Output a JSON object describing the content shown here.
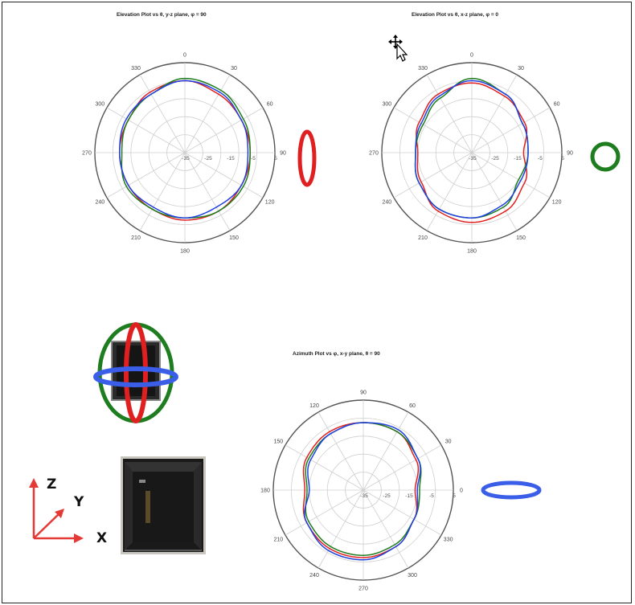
{
  "colors": {
    "red": "#e02020",
    "green": "#1e7d1e",
    "blue": "#2040e0",
    "grid": "#cfcfcf",
    "axis_arrow": "#e53935",
    "frame": "#222222"
  },
  "charts": {
    "yz": {
      "title": "Elevation Plot vs θ, y-z plane, φ = 90"
    },
    "xz": {
      "title": "Elevation Plot vs θ, x-z plane, φ = 0"
    },
    "xy": {
      "title": "Azimuth Plot vs φ, x-y plane, θ = 90"
    }
  },
  "coords": {
    "z_label": "Z",
    "y_label": "Y",
    "x_label": "X"
  },
  "icons": {
    "cursor": "move-cursor-icon"
  },
  "chart_data": [
    {
      "type": "polar-line",
      "title": "Elevation Plot vs θ, y-z plane, φ = 90",
      "angle_ticks": [
        "0",
        "30",
        "60",
        "90",
        "120",
        "150",
        "180",
        "210",
        "240",
        "270",
        "300",
        "330"
      ],
      "angle_zero": "top",
      "angle_direction": "clockwise",
      "r_ticks": [
        "-35",
        "-25",
        "-15",
        "-5",
        "5"
      ],
      "rlim": [
        -35,
        5
      ],
      "series": [
        {
          "color": "red",
          "angles": [
            0,
            30,
            60,
            90,
            120,
            150,
            180,
            210,
            240,
            270,
            300,
            330,
            360
          ],
          "values": [
            -3,
            -5,
            -6,
            -6,
            -6,
            -5,
            -5,
            -6,
            -6,
            -6,
            -6,
            -4,
            -3
          ]
        },
        {
          "color": "green",
          "angles": [
            0,
            30,
            60,
            90,
            120,
            150,
            180,
            210,
            240,
            270,
            300,
            330,
            360
          ],
          "values": [
            -2,
            -3,
            -5,
            -6,
            -5,
            -5,
            -6,
            -6,
            -5,
            -7,
            -6,
            -5,
            -2
          ]
        },
        {
          "color": "blue",
          "angles": [
            0,
            30,
            60,
            90,
            120,
            150,
            180,
            210,
            240,
            270,
            300,
            330,
            360
          ],
          "values": [
            -3,
            -4,
            -6,
            -7,
            -6,
            -7,
            -6,
            -7,
            -6,
            -6,
            -5,
            -5,
            -3
          ]
        }
      ]
    },
    {
      "type": "polar-line",
      "title": "Elevation Plot vs θ, x-z plane, φ = 0",
      "angle_ticks": [
        "0",
        "30",
        "60",
        "90",
        "120",
        "150",
        "180",
        "210",
        "240",
        "270",
        "300",
        "330"
      ],
      "angle_zero": "top",
      "angle_direction": "clockwise",
      "r_ticks": [
        "-35",
        "-25",
        "-15",
        "-5",
        "5"
      ],
      "rlim": [
        -35,
        5
      ],
      "series": [
        {
          "color": "red",
          "angles": [
            0,
            30,
            60,
            90,
            120,
            150,
            180,
            210,
            240,
            270,
            300,
            330,
            360
          ],
          "values": [
            -4,
            -6,
            -8,
            -12,
            -8,
            -5,
            -4,
            -5,
            -9,
            -11,
            -8,
            -5,
            -4
          ]
        },
        {
          "color": "green",
          "angles": [
            0,
            30,
            60,
            90,
            120,
            150,
            180,
            210,
            240,
            270,
            300,
            330,
            360
          ],
          "values": [
            -2,
            -5,
            -9,
            -10,
            -11,
            -7,
            -6,
            -6,
            -8,
            -10,
            -10,
            -7,
            -2
          ]
        },
        {
          "color": "blue",
          "angles": [
            0,
            30,
            60,
            90,
            120,
            150,
            180,
            210,
            240,
            270,
            300,
            330,
            360
          ],
          "values": [
            -3,
            -5,
            -9,
            -10,
            -10,
            -8,
            -6,
            -6,
            -8,
            -10,
            -9,
            -6,
            -3
          ]
        }
      ]
    },
    {
      "type": "polar-line",
      "title": "Azimuth Plot vs φ, x-y plane, θ = 90",
      "angle_ticks": [
        "0",
        "30",
        "60",
        "90",
        "120",
        "150",
        "180",
        "210",
        "240",
        "270",
        "300",
        "330"
      ],
      "angle_zero": "right",
      "angle_direction": "counterclockwise",
      "r_ticks": [
        "-35",
        "-25",
        "-15",
        "-5",
        "5"
      ],
      "rlim": [
        -35,
        5
      ],
      "series": [
        {
          "color": "red",
          "angles": [
            0,
            30,
            60,
            90,
            120,
            150,
            180,
            210,
            240,
            270,
            300,
            330,
            360
          ],
          "values": [
            -12,
            -8,
            -5,
            -5,
            -5,
            -6,
            -9,
            -6,
            -5,
            -5,
            -6,
            -9,
            -12
          ]
        },
        {
          "color": "green",
          "angles": [
            0,
            30,
            60,
            90,
            120,
            150,
            180,
            210,
            240,
            270,
            300,
            330,
            360
          ],
          "values": [
            -10,
            -7,
            -5,
            -5,
            -6,
            -7,
            -10,
            -7,
            -6,
            -6,
            -7,
            -9,
            -10
          ]
        },
        {
          "color": "blue",
          "angles": [
            0,
            30,
            60,
            90,
            120,
            150,
            180,
            210,
            240,
            270,
            300,
            330,
            360
          ],
          "values": [
            -11,
            -7,
            -4,
            -5,
            -6,
            -8,
            -11,
            -6,
            -4,
            -4,
            -6,
            -9,
            -11
          ]
        }
      ]
    }
  ]
}
